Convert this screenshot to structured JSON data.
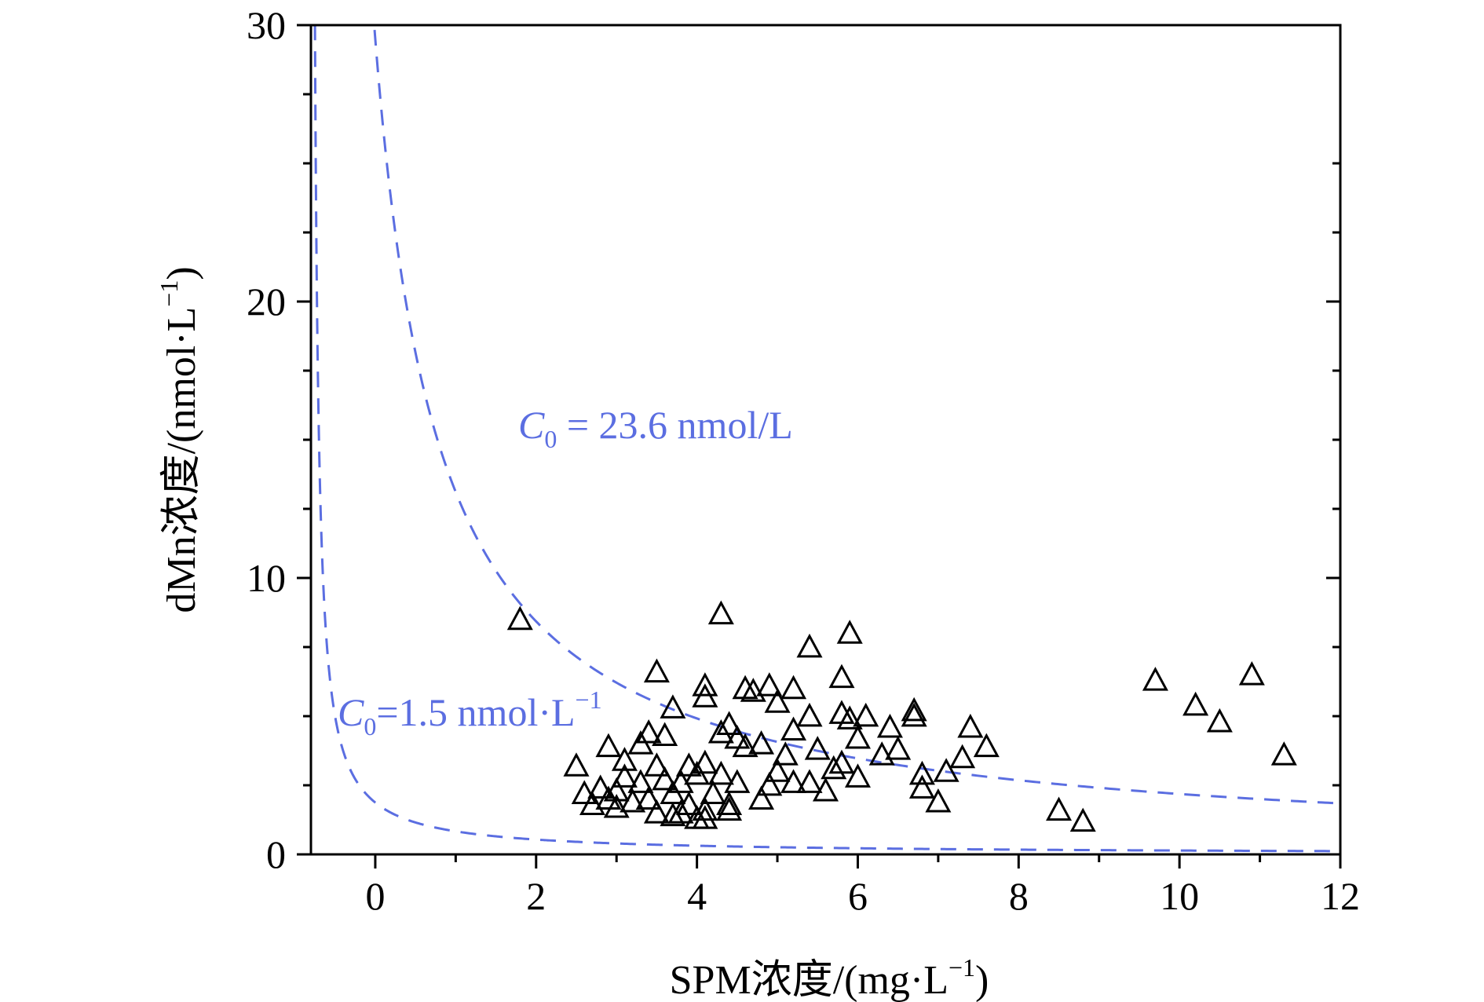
{
  "chart_data": {
    "type": "scatter",
    "xlabel": "SPM浓度/(mg·L",
    "xlabel_sup": "−1",
    "xlabel_close": ")",
    "ylabel": "dMn浓度/(nmol·L",
    "ylabel_sup": "−1",
    "ylabel_close": ")",
    "xlim": [
      -0.8,
      12
    ],
    "ylim": [
      0,
      30
    ],
    "x_ticks": [
      "0",
      "2",
      "4",
      "6",
      "8",
      "10",
      "12"
    ],
    "y_ticks": [
      "0",
      "10",
      "20",
      "30"
    ],
    "grid": false,
    "marker": "open-triangle",
    "curve_color": "#5b6ee1",
    "annotations": [
      {
        "c": "C",
        "sub": "0",
        "text": " = 23.6 nmol/L",
        "sup": ""
      },
      {
        "c": "C",
        "sub": "0",
        "text": "=1.5 nmol·L",
        "sup": "−1"
      }
    ],
    "curves": [
      {
        "c0": 23.6,
        "style": "dashed"
      },
      {
        "c0": 1.5,
        "style": "dashed"
      }
    ],
    "points": [
      [
        1.8,
        8.5
      ],
      [
        4.3,
        8.7
      ],
      [
        5.9,
        8.0
      ],
      [
        5.4,
        7.5
      ],
      [
        3.5,
        6.6
      ],
      [
        5.8,
        6.4
      ],
      [
        4.1,
        6.1
      ],
      [
        4.6,
        6.0
      ],
      [
        4.9,
        6.1
      ],
      [
        5.2,
        6.0
      ],
      [
        4.7,
        5.9
      ],
      [
        4.1,
        5.7
      ],
      [
        5.0,
        5.5
      ],
      [
        3.7,
        5.3
      ],
      [
        6.7,
        5.2
      ],
      [
        5.8,
        5.1
      ],
      [
        6.1,
        5.0
      ],
      [
        5.4,
        5.0
      ],
      [
        5.9,
        4.9
      ],
      [
        6.7,
        5.0
      ],
      [
        4.4,
        4.7
      ],
      [
        3.4,
        4.4
      ],
      [
        3.6,
        4.3
      ],
      [
        5.2,
        4.5
      ],
      [
        6.4,
        4.6
      ],
      [
        7.4,
        4.6
      ],
      [
        6.0,
        4.2
      ],
      [
        4.8,
        4.0
      ],
      [
        4.6,
        3.9
      ],
      [
        3.3,
        4.0
      ],
      [
        2.9,
        3.9
      ],
      [
        4.3,
        4.4
      ],
      [
        4.5,
        4.2
      ],
      [
        6.5,
        3.8
      ],
      [
        6.3,
        3.6
      ],
      [
        7.6,
        3.9
      ],
      [
        5.5,
        3.8
      ],
      [
        5.1,
        3.6
      ],
      [
        7.3,
        3.5
      ],
      [
        3.1,
        3.4
      ],
      [
        3.5,
        3.2
      ],
      [
        2.5,
        3.2
      ],
      [
        3.9,
        3.2
      ],
      [
        4.1,
        3.3
      ],
      [
        5.8,
        3.3
      ],
      [
        5.7,
        3.1
      ],
      [
        7.1,
        3.0
      ],
      [
        6.8,
        2.9
      ],
      [
        6.0,
        2.8
      ],
      [
        5.0,
        3.0
      ],
      [
        3.1,
        2.8
      ],
      [
        4.0,
        2.9
      ],
      [
        3.6,
        2.7
      ],
      [
        2.8,
        2.4
      ],
      [
        3.3,
        2.6
      ],
      [
        4.5,
        2.6
      ],
      [
        5.2,
        2.6
      ],
      [
        5.4,
        2.6
      ],
      [
        4.9,
        2.5
      ],
      [
        6.8,
        2.4
      ],
      [
        3.7,
        2.2
      ],
      [
        4.2,
        2.2
      ],
      [
        3.0,
        2.3
      ],
      [
        2.6,
        2.2
      ],
      [
        2.9,
        2.0
      ],
      [
        3.4,
        2.0
      ],
      [
        4.8,
        2.0
      ],
      [
        7.0,
        1.9
      ],
      [
        2.7,
        1.8
      ],
      [
        3.2,
        1.9
      ],
      [
        4.4,
        1.8
      ],
      [
        3.9,
        1.8
      ],
      [
        3.0,
        1.7
      ],
      [
        3.5,
        1.5
      ],
      [
        4.1,
        1.6
      ],
      [
        4.4,
        1.6
      ],
      [
        3.8,
        1.5
      ],
      [
        4.0,
        1.3
      ],
      [
        4.1,
        1.3
      ],
      [
        3.7,
        1.4
      ],
      [
        8.5,
        1.6
      ],
      [
        8.8,
        1.2
      ],
      [
        9.7,
        6.3
      ],
      [
        10.9,
        6.5
      ],
      [
        10.2,
        5.4
      ],
      [
        10.5,
        4.8
      ],
      [
        11.3,
        3.6
      ],
      [
        5.6,
        2.3
      ],
      [
        4.3,
        2.9
      ],
      [
        3.8,
        2.6
      ]
    ]
  }
}
